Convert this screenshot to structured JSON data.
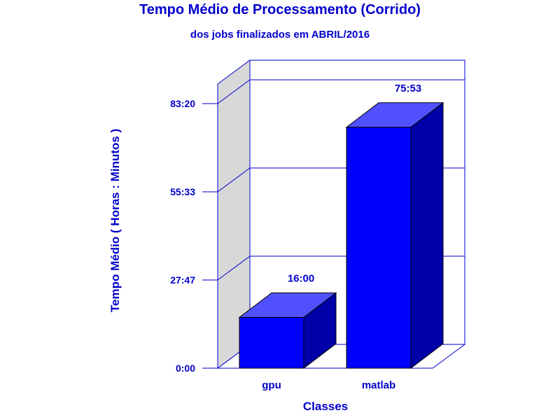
{
  "chart_data": {
    "type": "bar",
    "title": "Tempo Médio de Processamento (Corrido)",
    "subtitle": "dos jobs finalizados em ABRIL/2016",
    "xlabel": "Classes",
    "ylabel": "Tempo Médio ( Horas : Minutos )",
    "categories": [
      "gpu",
      "matlab"
    ],
    "values_minutes": [
      960,
      4553
    ],
    "value_labels": [
      "16:00",
      "75:53"
    ],
    "y_ticks_minutes": [
      0,
      1667,
      3333,
      5000
    ],
    "y_tick_labels": [
      "0:00",
      "27:47",
      "55:33",
      "83:20"
    ],
    "ylim_minutes": [
      0,
      5000
    ],
    "grid": true,
    "three_d": true,
    "colors": {
      "text": "#0000cc",
      "bar_front": "#0000ff",
      "bar_top": "#5050ff",
      "bar_side": "#0000a8",
      "axis": "#0000cc",
      "back_wall": "#d8d8d8"
    }
  }
}
